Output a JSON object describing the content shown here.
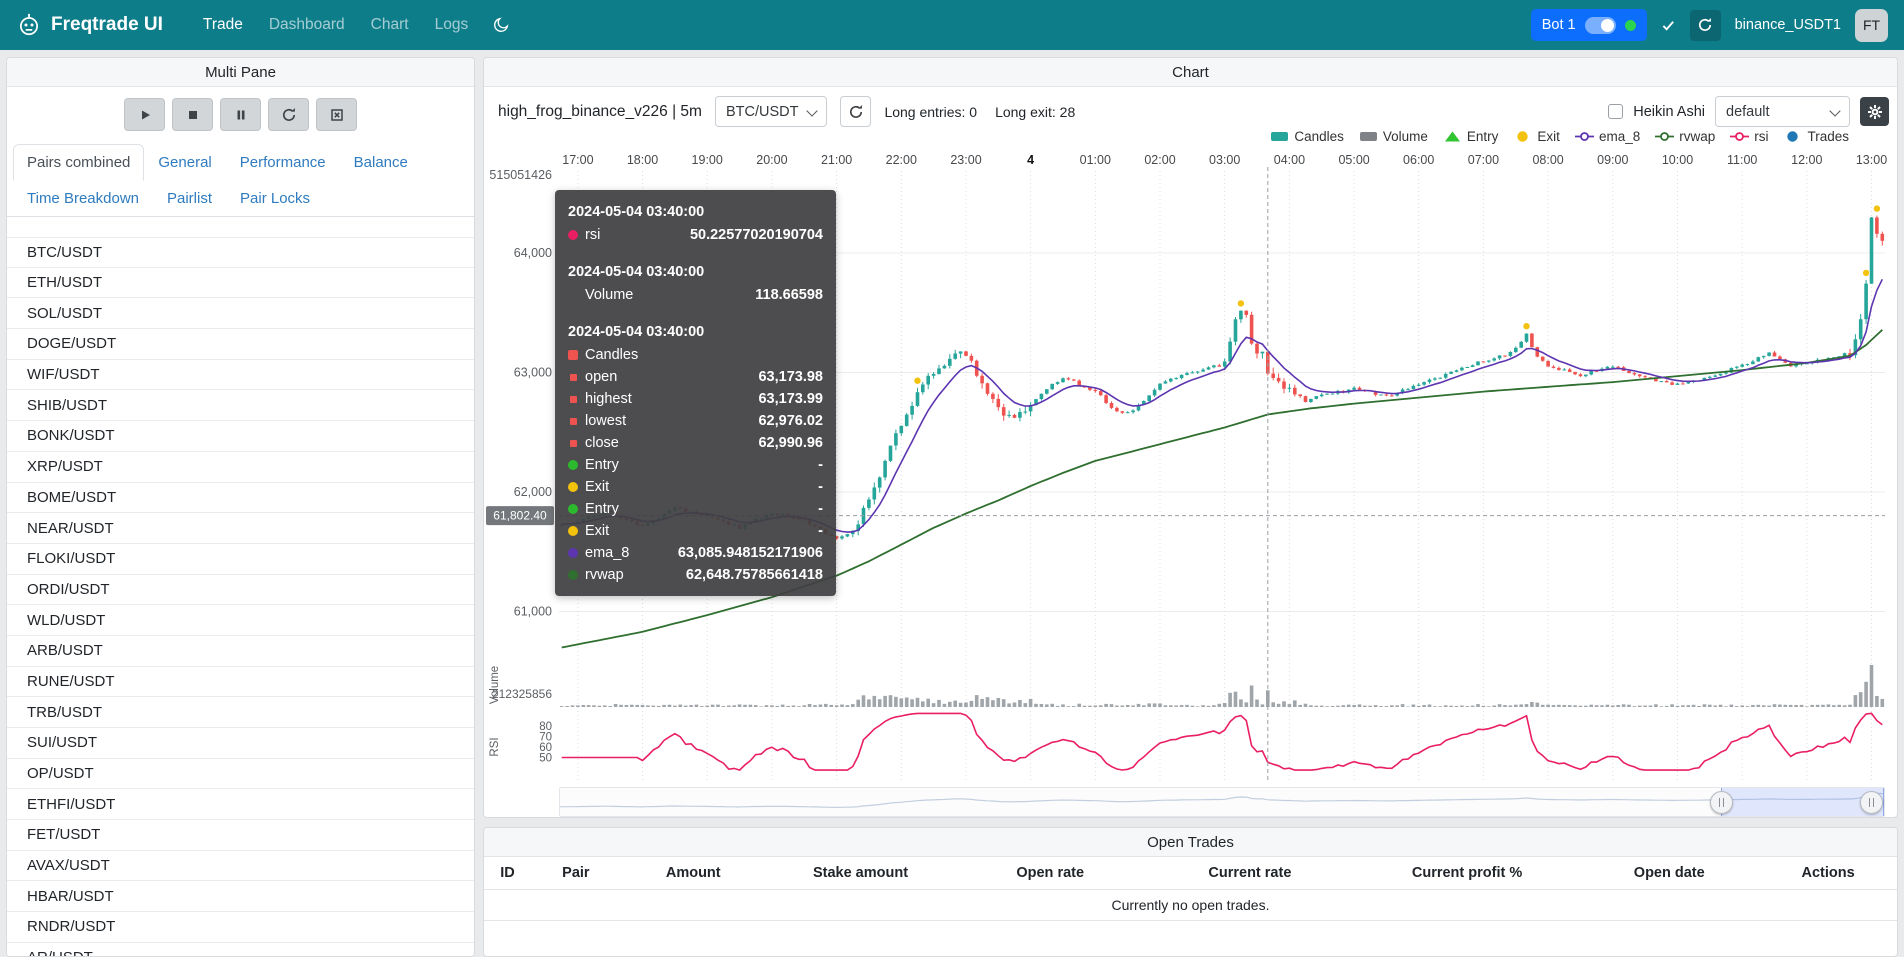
{
  "navbar": {
    "brand": "Freqtrade UI",
    "links": [
      "Trade",
      "Dashboard",
      "Chart",
      "Logs"
    ],
    "active_link": "Trade",
    "bot_badge": {
      "label": "Bot 1",
      "toggle_on": true,
      "online": true
    },
    "instance_name": "binance_USDT1",
    "avatar": "FT",
    "colors": {
      "bg": "#0e7d8a",
      "badge": "#0d6efd",
      "online_dot": "#2ad44e"
    }
  },
  "icons": {
    "robot-logo": "robot-head",
    "theme-moon": "moon",
    "sync-check": "check",
    "reload": "circular-arrow",
    "play": "triangle",
    "stop": "square",
    "pause": "double-bar",
    "cancel-open-orders": "box-x",
    "settings-gear": "gear",
    "dropdown-chevron": "chevron-down",
    "navigator-handle": "double-bar-circle"
  },
  "left_panel": {
    "title": "Multi Pane",
    "controls": [
      "play",
      "stop",
      "pause",
      "reload",
      "cancel-open-orders"
    ],
    "tabs": [
      "Pairs combined",
      "General",
      "Performance",
      "Balance",
      "Time Breakdown",
      "Pairlist",
      "Pair Locks"
    ],
    "active_tab": "Pairs combined",
    "pairs": [
      "BTC/USDT",
      "ETH/USDT",
      "SOL/USDT",
      "DOGE/USDT",
      "WIF/USDT",
      "SHIB/USDT",
      "BONK/USDT",
      "XRP/USDT",
      "BOME/USDT",
      "NEAR/USDT",
      "FLOKI/USDT",
      "ORDI/USDT",
      "WLD/USDT",
      "ARB/USDT",
      "RUNE/USDT",
      "TRB/USDT",
      "SUI/USDT",
      "OP/USDT",
      "ETHFI/USDT",
      "FET/USDT",
      "AVAX/USDT",
      "HBAR/USDT",
      "RNDR/USDT",
      "AR/USDT"
    ]
  },
  "chart_panel": {
    "title": "Chart",
    "strategy_label": "high_frog_binance_v226 | 5m",
    "pair_select": "BTC/USDT",
    "entries_label": "Long entries: 0",
    "exits_label": "Long exit: 28",
    "heikin_ashi_label": "Heikin Ashi",
    "heikin_ashi_checked": false,
    "plot_config_select": "default",
    "legend": [
      {
        "label": "Candles",
        "type": "rect",
        "color": "#26a69a"
      },
      {
        "label": "Volume",
        "type": "rect",
        "color": "#7f8388"
      },
      {
        "label": "Entry",
        "type": "triangle",
        "color": "#31c431"
      },
      {
        "label": "Exit",
        "type": "circle",
        "color": "#f3c20d"
      },
      {
        "label": "ema_8",
        "type": "line-dot",
        "color": "#5e35b1"
      },
      {
        "label": "rvwap",
        "type": "line-dot",
        "color": "#2f6f2f"
      },
      {
        "label": "rsi",
        "type": "line-dot",
        "color": "#e91e63"
      },
      {
        "label": "Trades",
        "type": "dot",
        "color": "#1f77b4"
      }
    ],
    "y_axis_top_label": "515051426",
    "volume_axis_label": "212325856",
    "crosshair_price_label": "61,802.40",
    "pane_labels": {
      "volume": "Volume",
      "rsi": "RSI"
    }
  },
  "tooltip": {
    "sections": [
      {
        "date": "2024-05-04 03:40:00",
        "rows": [
          {
            "shape": "dot",
            "color": "#e91e63",
            "label": "rsi",
            "value": "50.22577020190704"
          }
        ]
      },
      {
        "date": "2024-05-04 03:40:00",
        "rows": [
          {
            "shape": "none",
            "color": "#888888",
            "label": "Volume",
            "value": "118.66598"
          }
        ]
      },
      {
        "date": "2024-05-04 03:40:00",
        "rows": [
          {
            "shape": "square",
            "color": "#ef5350",
            "label": "Candles",
            "value": ""
          },
          {
            "shape": "sq-small",
            "color": "#ef5350",
            "label": "open",
            "value": "63,173.98"
          },
          {
            "shape": "sq-small",
            "color": "#ef5350",
            "label": "highest",
            "value": "63,173.99"
          },
          {
            "shape": "sq-small",
            "color": "#ef5350",
            "label": "lowest",
            "value": "62,976.02"
          },
          {
            "shape": "sq-small",
            "color": "#ef5350",
            "label": "close",
            "value": "62,990.96"
          },
          {
            "shape": "dot",
            "color": "#2db92d",
            "label": "Entry",
            "value": "-"
          },
          {
            "shape": "dot",
            "color": "#f3c20d",
            "label": "Exit",
            "value": "-"
          },
          {
            "shape": "dot",
            "color": "#2db92d",
            "label": "Entry",
            "value": "-"
          },
          {
            "shape": "dot",
            "color": "#f3c20d",
            "label": "Exit",
            "value": "-"
          },
          {
            "shape": "dot",
            "color": "#5e35b1",
            "label": "ema_8",
            "value": "63,085.948152171906"
          },
          {
            "shape": "dot",
            "color": "#2f6f2f",
            "label": "rvwap",
            "value": "62,648.75785661418"
          }
        ]
      }
    ]
  },
  "open_trades": {
    "title": "Open Trades",
    "columns": [
      "ID",
      "Pair",
      "Amount",
      "Stake amount",
      "Open rate",
      "Current rate",
      "Current profit %",
      "Open date",
      "Actions"
    ],
    "empty_text": "Currently no open trades."
  },
  "chart_data": {
    "type": "candlestick+volume+rsi",
    "pair": "BTC/USDT",
    "timeframe": "5m",
    "hour_labels": [
      "17:00",
      "18:00",
      "19:00",
      "20:00",
      "21:00",
      "22:00",
      "23:00",
      "4",
      "01:00",
      "02:00",
      "03:00",
      "04:00",
      "05:00",
      "06:00",
      "07:00",
      "08:00",
      "09:00",
      "10:00",
      "11:00",
      "12:00",
      "13:00"
    ],
    "n_candles": 246,
    "t_start_min": -15,
    "step_min": 5,
    "first_hour_index": 3,
    "candles_per_hour": 12,
    "price_ylim": [
      60600,
      64650
    ],
    "price_ticks": [
      {
        "label": "64,000",
        "value": 64000
      },
      {
        "label": "63,000",
        "value": 63000
      },
      {
        "label": "62,000",
        "value": 62000
      },
      {
        "label": "61,000",
        "value": 61000
      }
    ],
    "rsi_ticks": [
      {
        "label": "80",
        "value": 80
      },
      {
        "label": "70",
        "value": 70
      },
      {
        "label": "60",
        "value": 60
      },
      {
        "label": "50",
        "value": 50
      }
    ],
    "close_anchors": [
      [
        -20,
        61720
      ],
      [
        0,
        61760
      ],
      [
        30,
        61830
      ],
      [
        60,
        61710
      ],
      [
        90,
        61860
      ],
      [
        120,
        61790
      ],
      [
        150,
        61700
      ],
      [
        180,
        61830
      ],
      [
        210,
        61760
      ],
      [
        240,
        61600
      ],
      [
        255,
        61660
      ],
      [
        270,
        61920
      ],
      [
        285,
        62260
      ],
      [
        300,
        62560
      ],
      [
        315,
        62820
      ],
      [
        330,
        63010
      ],
      [
        345,
        63120
      ],
      [
        360,
        63160
      ],
      [
        375,
        62910
      ],
      [
        390,
        62700
      ],
      [
        405,
        62610
      ],
      [
        420,
        62720
      ],
      [
        435,
        62860
      ],
      [
        450,
        62960
      ],
      [
        465,
        62900
      ],
      [
        480,
        62850
      ],
      [
        495,
        62700
      ],
      [
        510,
        62660
      ],
      [
        525,
        62760
      ],
      [
        540,
        62910
      ],
      [
        570,
        63000
      ],
      [
        600,
        63090
      ],
      [
        612,
        63480
      ],
      [
        618,
        63560
      ],
      [
        626,
        63180
      ],
      [
        635,
        63174
      ],
      [
        640,
        62991
      ],
      [
        650,
        62900
      ],
      [
        660,
        62850
      ],
      [
        675,
        62760
      ],
      [
        690,
        62810
      ],
      [
        720,
        62860
      ],
      [
        750,
        62800
      ],
      [
        780,
        62900
      ],
      [
        810,
        63000
      ],
      [
        840,
        63100
      ],
      [
        865,
        63160
      ],
      [
        880,
        63320
      ],
      [
        890,
        63120
      ],
      [
        900,
        63060
      ],
      [
        930,
        62980
      ],
      [
        960,
        63060
      ],
      [
        990,
        62950
      ],
      [
        1020,
        62900
      ],
      [
        1050,
        62960
      ],
      [
        1080,
        63060
      ],
      [
        1105,
        63160
      ],
      [
        1125,
        63060
      ],
      [
        1140,
        63070
      ],
      [
        1160,
        63120
      ],
      [
        1180,
        63160
      ],
      [
        1190,
        63420
      ],
      [
        1196,
        63820
      ],
      [
        1201,
        64380
      ],
      [
        1206,
        64140
      ],
      [
        1215,
        64100
      ]
    ],
    "rvwap_anchors": [
      [
        -20,
        60690
      ],
      [
        60,
        60830
      ],
      [
        120,
        60970
      ],
      [
        180,
        61120
      ],
      [
        240,
        61300
      ],
      [
        270,
        61420
      ],
      [
        300,
        61560
      ],
      [
        330,
        61700
      ],
      [
        360,
        61820
      ],
      [
        390,
        61930
      ],
      [
        420,
        62050
      ],
      [
        450,
        62160
      ],
      [
        480,
        62260
      ],
      [
        510,
        62330
      ],
      [
        540,
        62400
      ],
      [
        570,
        62470
      ],
      [
        600,
        62540
      ],
      [
        640,
        62648.76
      ],
      [
        680,
        62700
      ],
      [
        720,
        62740
      ],
      [
        780,
        62790
      ],
      [
        840,
        62840
      ],
      [
        900,
        62880
      ],
      [
        960,
        62920
      ],
      [
        1020,
        62970
      ],
      [
        1080,
        63020
      ],
      [
        1140,
        63080
      ],
      [
        1180,
        63140
      ],
      [
        1195,
        63230
      ],
      [
        1215,
        63400
      ]
    ],
    "exit_marker_times": [
      315,
      615,
      880,
      1195,
      1205
    ],
    "highlight": {
      "time_min": 640,
      "ohlc": [
        63173.98,
        63173.99,
        62976.02,
        62990.96
      ],
      "rsi": 50.22577020190704,
      "volume": 118.66598,
      "ema_8": 63085.948152171906,
      "rvwap": 62648.75785661418
    },
    "crosshair": {
      "price": 61802.4,
      "label": "61,802.40",
      "time_min": 640
    },
    "seed": 20240504,
    "series_colors": {
      "up": "#26a69a",
      "down": "#ef5350",
      "ema_8": "#5e35b1",
      "rvwap": "#2f6f2f",
      "rsi": "#e91e63",
      "volume": "#8f959a"
    }
  }
}
